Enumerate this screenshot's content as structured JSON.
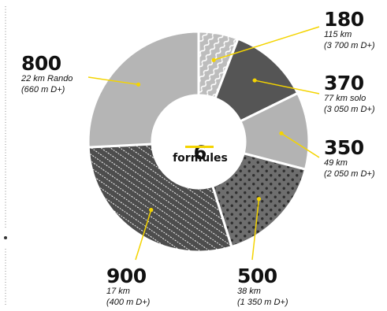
{
  "chart_data": {
    "type": "pie",
    "total": "6",
    "total_label": "formules",
    "slices": [
      {
        "value": 180,
        "label": "180",
        "l1": "115 km",
        "l2": "(3 700 m D+)",
        "pattern": "wave",
        "color": "#bdbdbd"
      },
      {
        "value": 370,
        "label": "370",
        "l1": "77 km solo",
        "l2": "(3 050 m D+)",
        "pattern": "solid",
        "color": "#555555"
      },
      {
        "value": 350,
        "label": "350",
        "l1": "49 km",
        "l2": "(2 050 m D+)",
        "pattern": "solid",
        "color": "#b3b3b3"
      },
      {
        "value": 500,
        "label": "500",
        "l1": "38 km",
        "l2": "(1 350 m D+)",
        "pattern": "dots",
        "color": "#6e6e6e"
      },
      {
        "value": 900,
        "label": "900",
        "l1": "17 km",
        "l2": "(400 m D+)",
        "pattern": "hatch",
        "color": "#4d4d4d"
      },
      {
        "value": 800,
        "label": "800",
        "l1": "22 km Rando",
        "l2": "(660 m D+)",
        "pattern": "solid",
        "color": "#b5b5b5"
      }
    ],
    "accent_color": "#f4d400"
  }
}
